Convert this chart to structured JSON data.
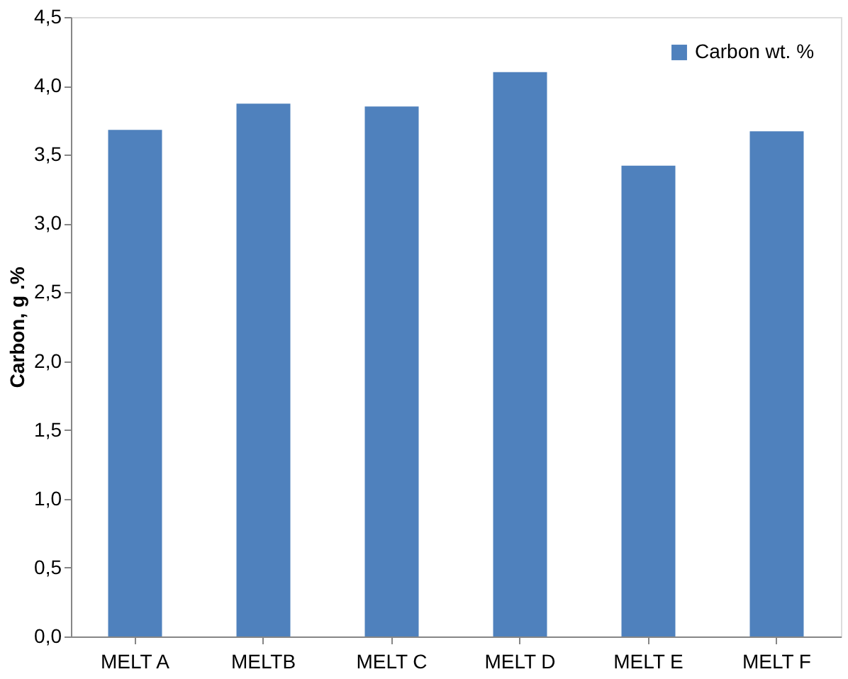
{
  "chart_data": {
    "type": "bar",
    "ylabel": "Carbon, g .%",
    "categories": [
      "MELT A",
      "MELTB",
      "MELT C",
      "MELT D",
      "MELT E",
      "MELT F"
    ],
    "series": [
      {
        "name": "Carbon wt. %",
        "color": "#4f81bd",
        "values": [
          3.68,
          3.87,
          3.85,
          4.1,
          3.42,
          3.67
        ]
      }
    ],
    "ylim": [
      0,
      4.5
    ],
    "yticks": [
      {
        "value": 0,
        "label": "0,0"
      },
      {
        "value": 0.5,
        "label": "0,5"
      },
      {
        "value": 1,
        "label": "1,0"
      },
      {
        "value": 1.5,
        "label": "1,5"
      },
      {
        "value": 2,
        "label": "2,0"
      },
      {
        "value": 2.5,
        "label": "2,5"
      },
      {
        "value": 3,
        "label": "3,0"
      },
      {
        "value": 3.5,
        "label": "3,5"
      },
      {
        "value": 4,
        "label": "4,0"
      },
      {
        "value": 4.5,
        "label": "4,5"
      }
    ],
    "grid": false,
    "legend": "top right"
  }
}
